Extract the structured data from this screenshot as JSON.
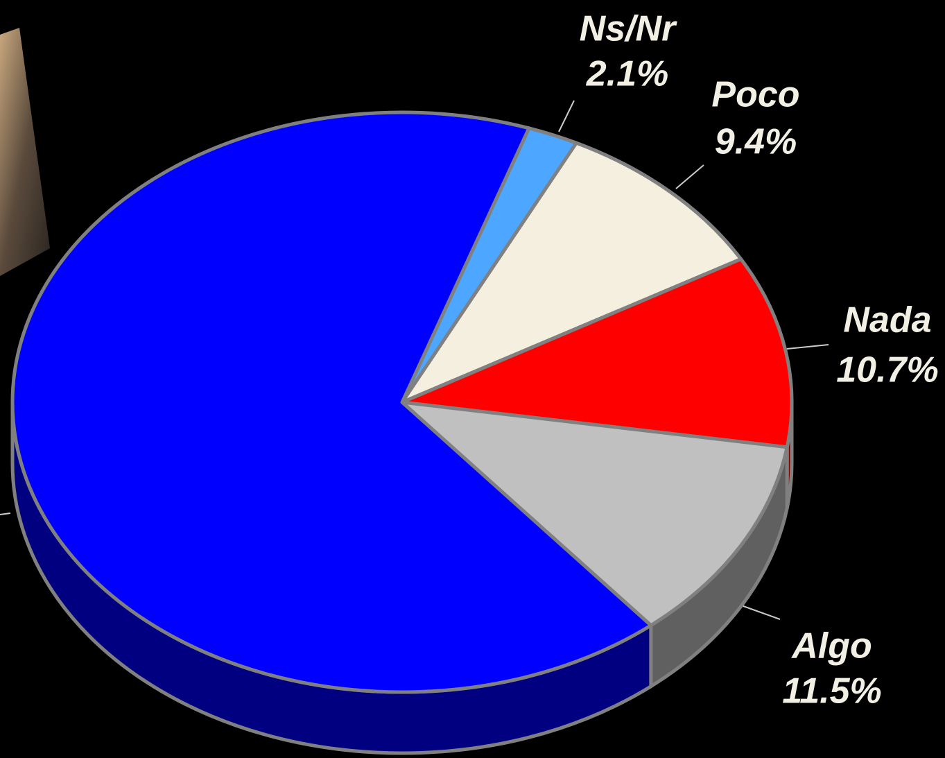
{
  "chart_data": {
    "type": "pie",
    "categories": [
      "Ns/Nr",
      "Poco",
      "Nada",
      "Algo",
      null
    ],
    "values": [
      2.1,
      9.4,
      10.7,
      11.5,
      66.3
    ],
    "value_labels": [
      "2.1%",
      "9.4%",
      "10.7%",
      "11.5%",
      null
    ],
    "colors": [
      "#4da6ff",
      "#f5efe0",
      "#ff0000",
      "#c0c0c0",
      "#0000ff"
    ]
  }
}
